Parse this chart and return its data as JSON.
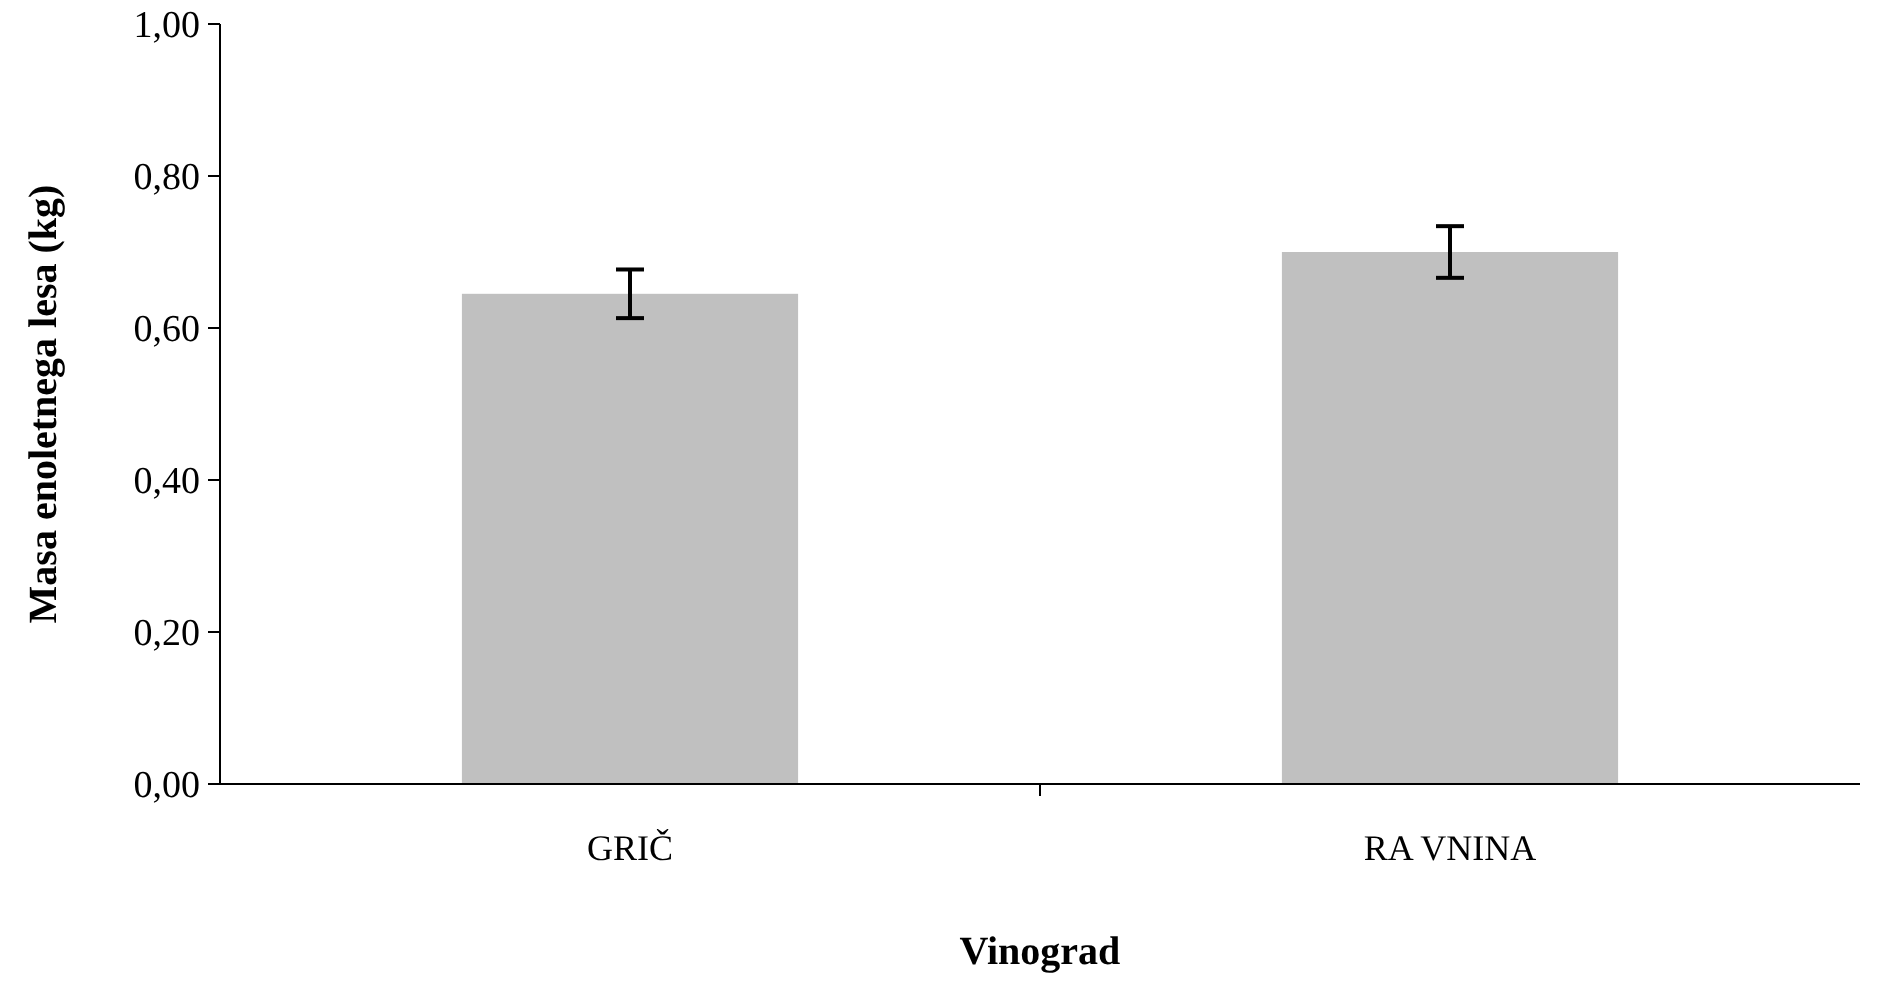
{
  "chart_data": {
    "type": "bar",
    "xlabel": "Vinograd",
    "ylabel": "Masa enoletnega lesa (kg)",
    "categories": [
      "GRIČ",
      "RA VNINA"
    ],
    "values": [
      0.645,
      0.7
    ],
    "errors": [
      0.032,
      0.034
    ],
    "color": "#c0c0c0",
    "ylim": [
      0,
      1
    ],
    "yticks": [
      {
        "value": 0,
        "label": "0,00"
      },
      {
        "value": 0.2,
        "label": "0,20"
      },
      {
        "value": 0.4,
        "label": "0,40"
      },
      {
        "value": 0.6,
        "label": "0,60"
      },
      {
        "value": 0.8,
        "label": "0,80"
      },
      {
        "value": 1,
        "label": "1,00"
      }
    ],
    "grid": false
  }
}
